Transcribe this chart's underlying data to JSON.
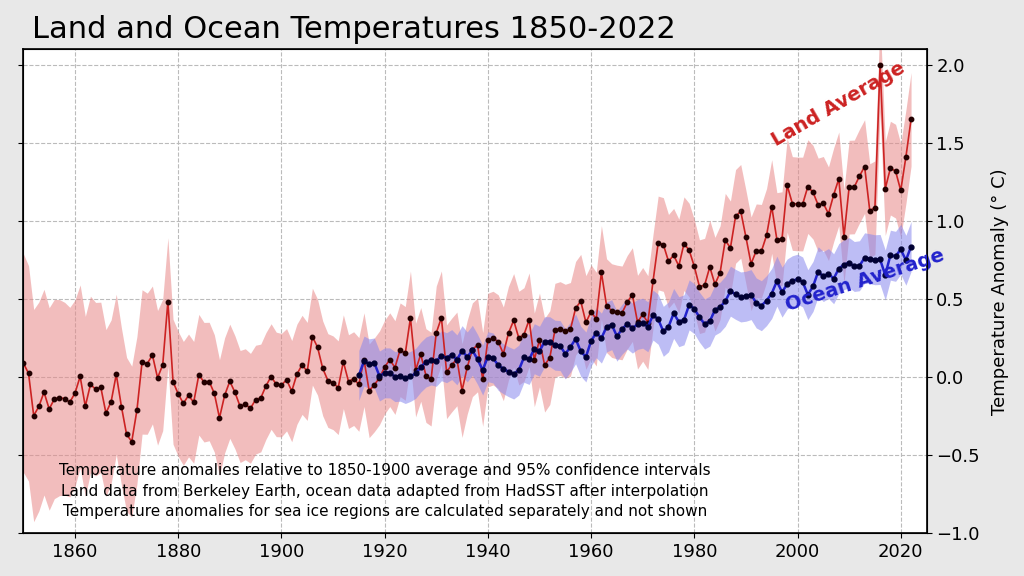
{
  "title": "Land and Ocean Temperatures 1850-2022",
  "ylabel": "Temperature Anomaly (° C)",
  "xlim": [
    1850,
    2025
  ],
  "ylim": [
    -1.0,
    2.1
  ],
  "yticks": [
    -1.0,
    -0.5,
    0.0,
    0.5,
    1.0,
    1.5,
    2.0
  ],
  "xticks": [
    1860,
    1880,
    1900,
    1920,
    1940,
    1960,
    1980,
    2000,
    2020
  ],
  "land_color": "#cc2222",
  "land_shade_color": "#e88888",
  "ocean_color": "#2222cc",
  "ocean_shade_color": "#8888ee",
  "background_color": "#e8e8e8",
  "plot_bg_color": "#ffffff",
  "grid_color": "#bbbbbb",
  "title_fontsize": 22,
  "label_fontsize": 13,
  "annotation_fontsize": 11,
  "land_label": "Land Average",
  "ocean_label": "Ocean Average",
  "note_line1": "Temperature anomalies relative to 1850-1900 average and 95% confidence intervals",
  "note_line2": "Land data from Berkeley Earth, ocean data adapted from HadSST after interpolation",
  "note_line3": "Temperature anomalies for sea ice regions are calculated separately and not shown"
}
